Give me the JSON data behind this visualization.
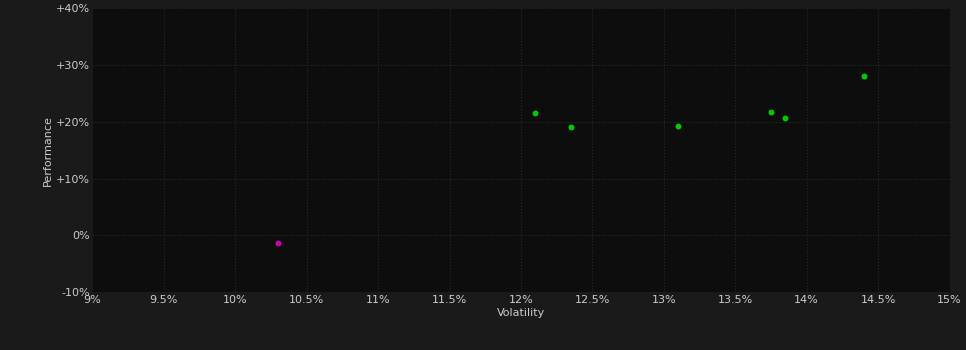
{
  "background_color": "#1a1a1a",
  "plot_bg_color": "#0d0d0d",
  "grid_color": "#2a2a2a",
  "text_color": "#cccccc",
  "xlabel": "Volatility",
  "ylabel": "Performance",
  "xlim": [
    0.09,
    0.15
  ],
  "ylim": [
    -0.1,
    0.4
  ],
  "xticks": [
    0.09,
    0.095,
    0.1,
    0.105,
    0.11,
    0.115,
    0.12,
    0.125,
    0.13,
    0.135,
    0.14,
    0.145,
    0.15
  ],
  "yticks": [
    -0.1,
    0.0,
    0.1,
    0.2,
    0.3,
    0.4
  ],
  "ytick_labels": [
    "-10%",
    "0%",
    "+10%",
    "+20%",
    "+30%",
    "+40%"
  ],
  "xtick_labels": [
    "9%",
    "9.5%",
    "10%",
    "10.5%",
    "11%",
    "11.5%",
    "12%",
    "12.5%",
    "13%",
    "13.5%",
    "14%",
    "14.5%",
    "15%"
  ],
  "points_green": [
    [
      0.121,
      0.215
    ],
    [
      0.1235,
      0.19
    ],
    [
      0.131,
      0.193
    ],
    [
      0.1375,
      0.218
    ],
    [
      0.1385,
      0.207
    ],
    [
      0.144,
      0.28
    ]
  ],
  "points_magenta": [
    [
      0.103,
      -0.013
    ]
  ],
  "green_color": "#00cc00",
  "magenta_color": "#cc00aa",
  "marker_size": 18,
  "label_fontsize": 8,
  "tick_fontsize": 8
}
